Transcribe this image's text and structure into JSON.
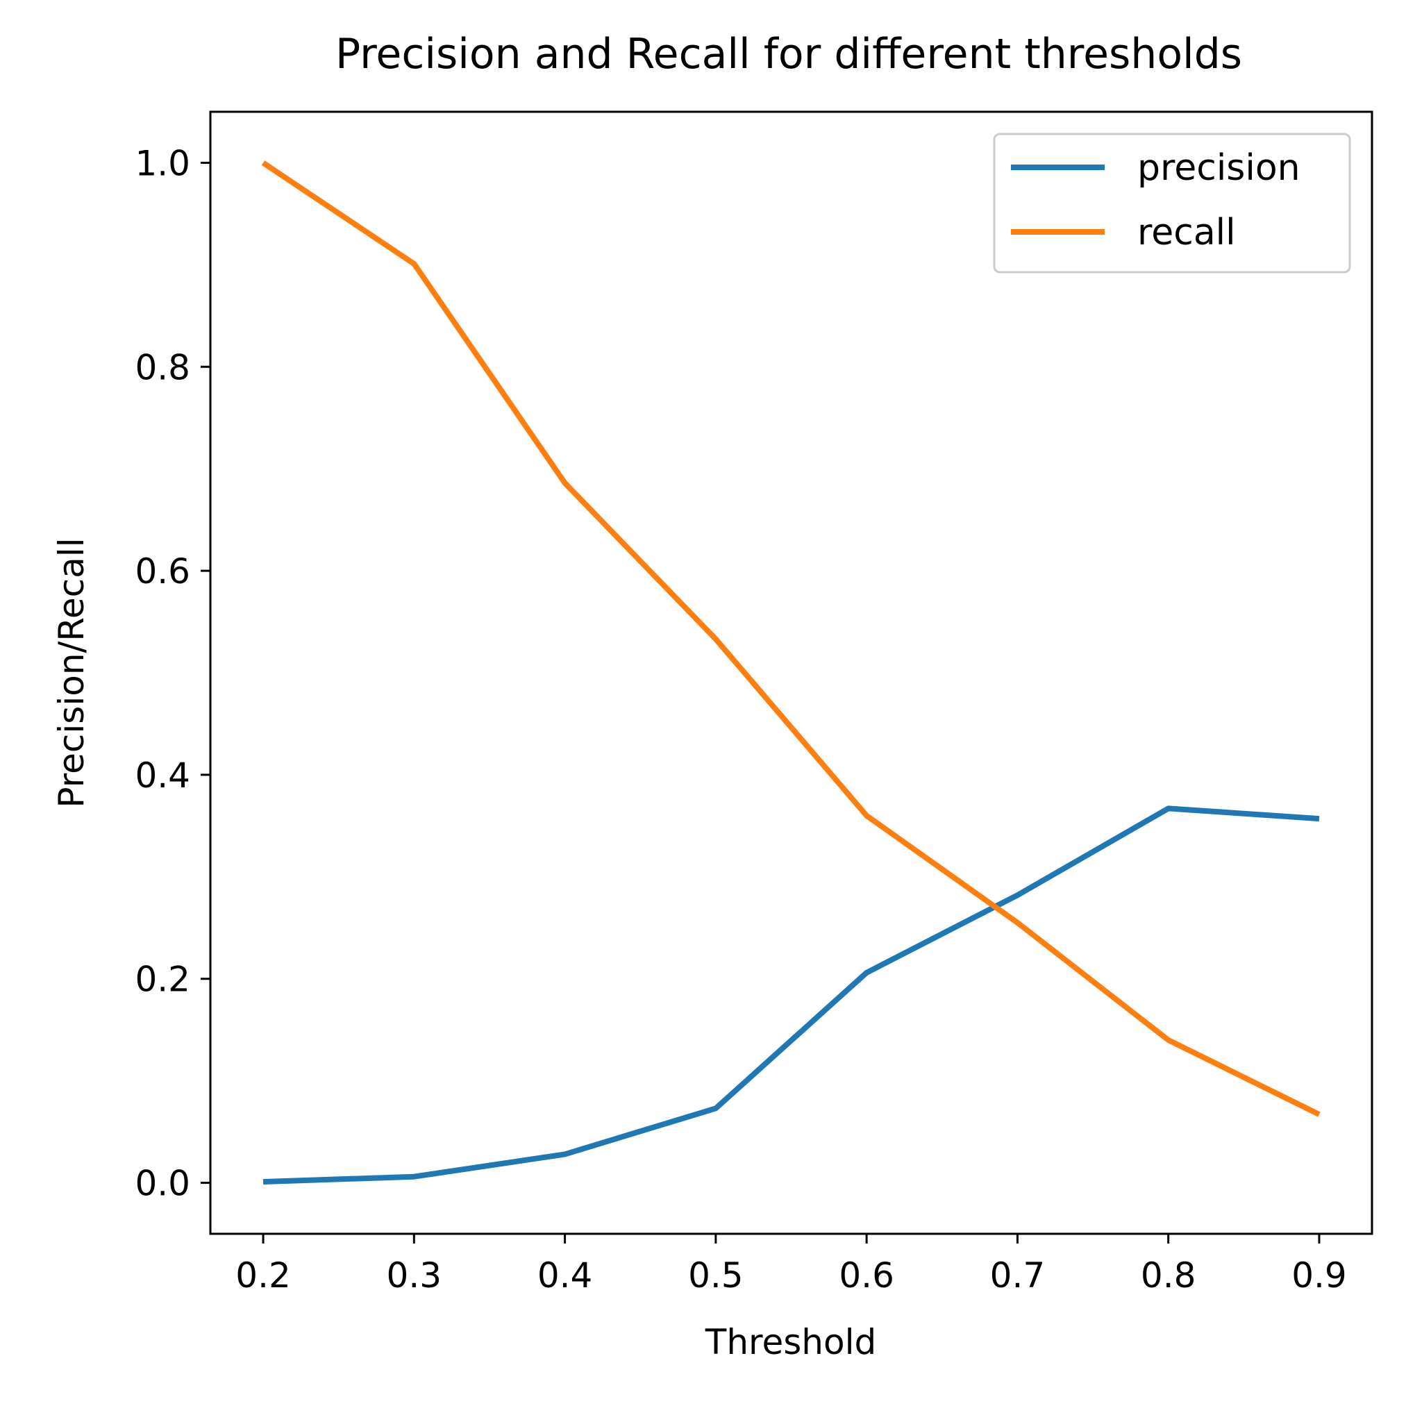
{
  "chart_data": {
    "type": "line",
    "title": "Precision and Recall for different thresholds",
    "xlabel": "Threshold",
    "ylabel": "Precision/Recall",
    "x": [
      0.2,
      0.3,
      0.4,
      0.5,
      0.6,
      0.7,
      0.8,
      0.9
    ],
    "xticks": [
      "0.2",
      "0.3",
      "0.4",
      "0.5",
      "0.6",
      "0.7",
      "0.8",
      "0.9"
    ],
    "yticks": [
      "0.0",
      "0.2",
      "0.4",
      "0.6",
      "0.8",
      "1.0"
    ],
    "xlim": [
      0.165,
      0.935
    ],
    "ylim": [
      -0.05,
      1.05
    ],
    "grid": false,
    "legend_position": "top-right",
    "series": [
      {
        "name": "precision",
        "color": "#1f77b4",
        "values": [
          0.001,
          0.006,
          0.028,
          0.073,
          0.206,
          0.282,
          0.367,
          0.357
        ]
      },
      {
        "name": "recall",
        "color": "#ff7f0e",
        "values": [
          1.0,
          0.901,
          0.686,
          0.533,
          0.36,
          0.255,
          0.14,
          0.067
        ]
      }
    ]
  }
}
